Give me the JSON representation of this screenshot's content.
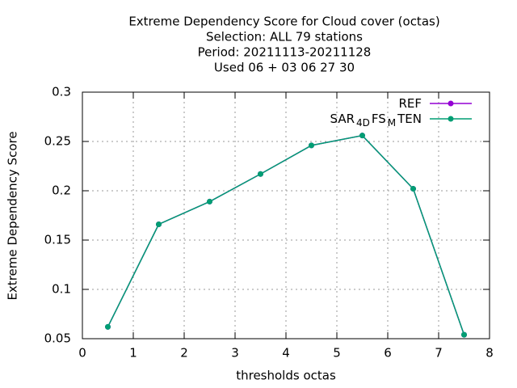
{
  "chart_data": {
    "type": "line",
    "title": [
      "Extreme Dependency Score  for Cloud cover (octas)",
      "Selection: ALL     79 stations",
      "Period: 20211113-20211128",
      "Used  06 + 03 06 27 30"
    ],
    "xlabel": "thresholds octas",
    "ylabel": "Extreme Dependency Score",
    "x": [
      0.5,
      1.5,
      2.5,
      3.5,
      4.5,
      5.5,
      6.5,
      7.5
    ],
    "series": [
      {
        "name": [
          "REF"
        ],
        "color": "#9400d3",
        "values": [
          0.062,
          0.166,
          0.189,
          0.217,
          0.246,
          0.256,
          0.202,
          0.054
        ]
      },
      {
        "name": [
          "SAR",
          "4D",
          "FS",
          "M",
          "TEN"
        ],
        "color": "#009e73",
        "values": [
          0.062,
          0.166,
          0.189,
          0.217,
          0.246,
          0.256,
          0.202,
          0.054
        ]
      }
    ],
    "xlim": [
      0,
      8
    ],
    "xticks": [
      0,
      1,
      2,
      3,
      4,
      5,
      6,
      7,
      8
    ],
    "ylim": [
      0.05,
      0.3
    ],
    "yticks": [
      0.05,
      0.1,
      0.15,
      0.2,
      0.25,
      0.3
    ],
    "grid": true,
    "legend": "top-right"
  }
}
